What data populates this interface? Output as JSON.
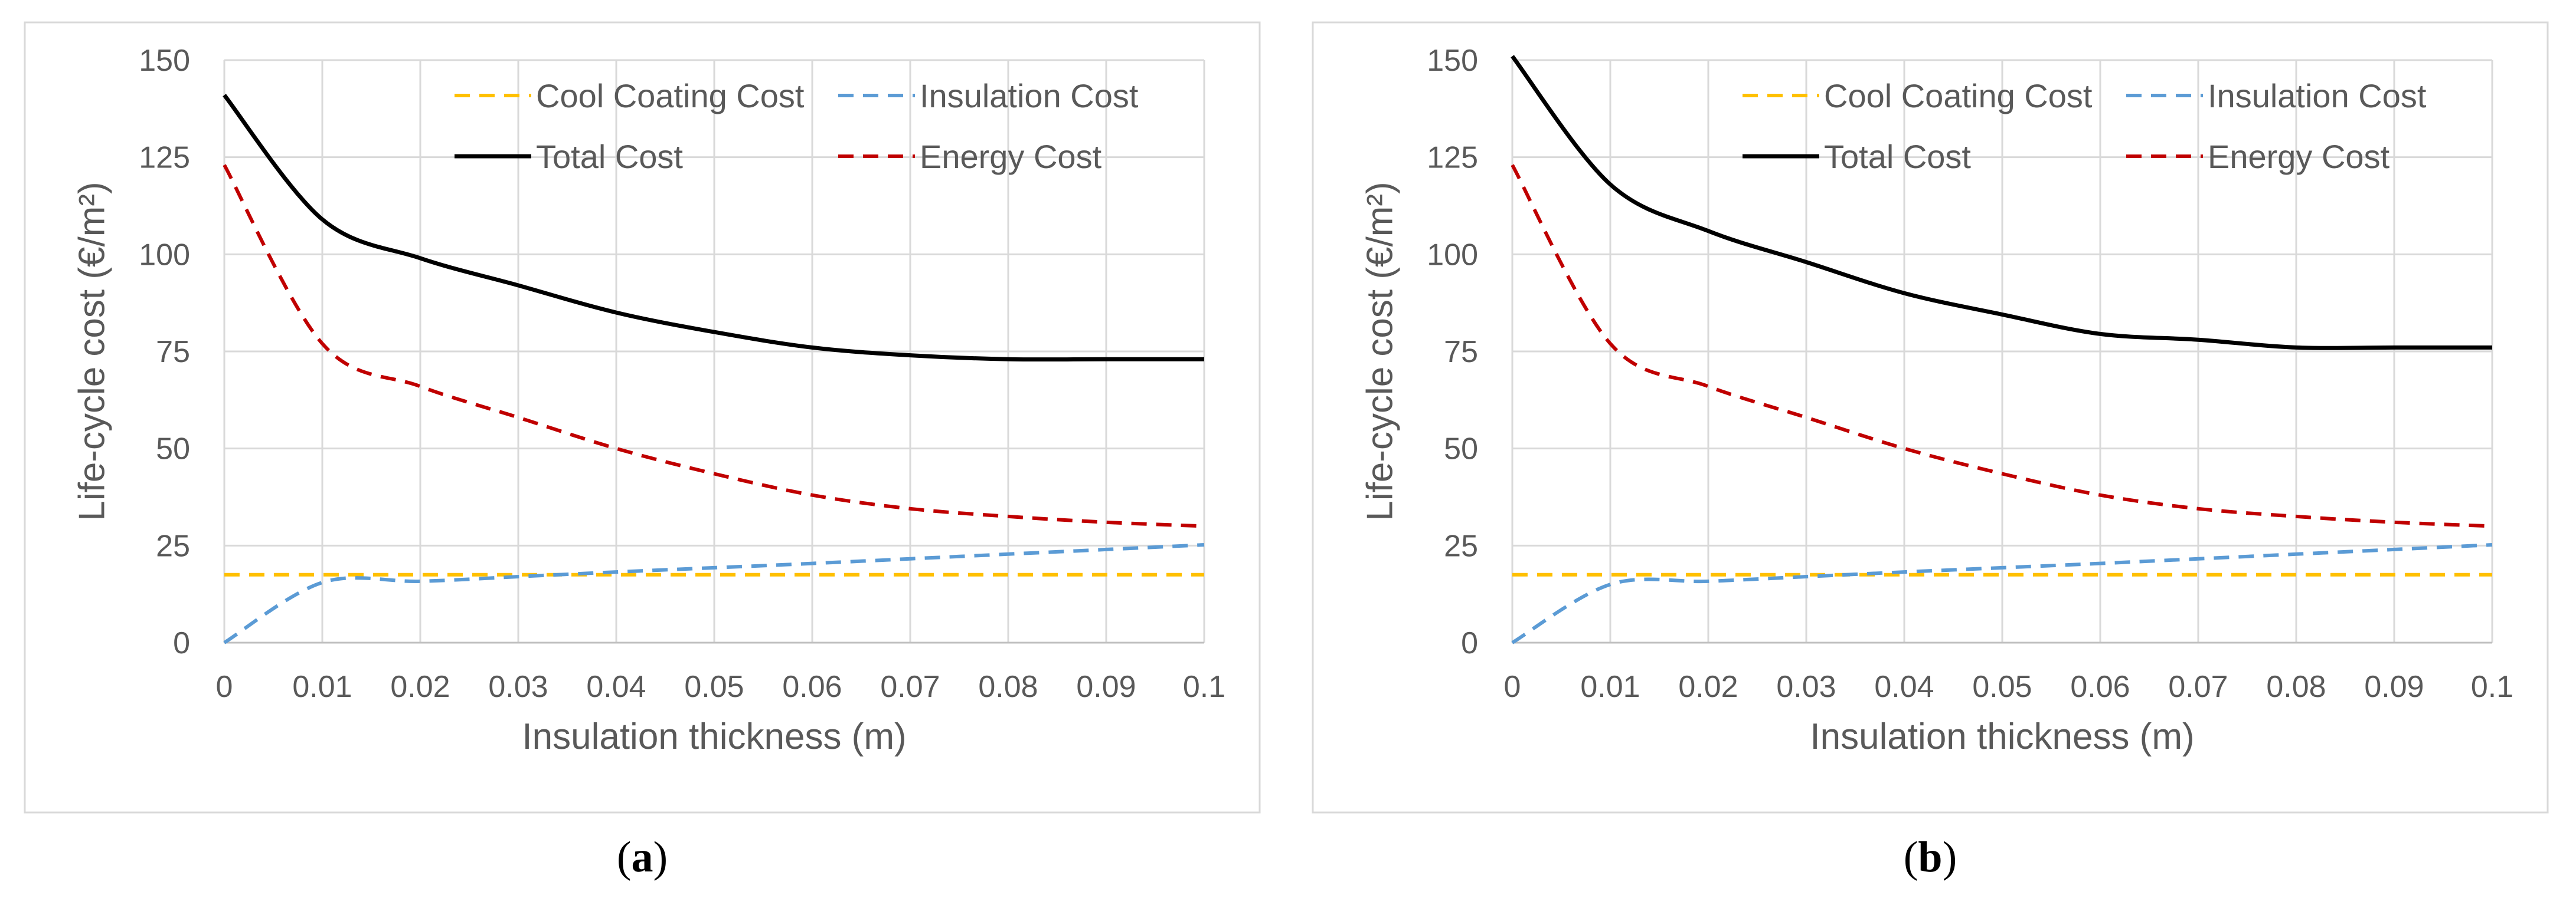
{
  "chart_data": [
    {
      "type": "line",
      "panel_label": "a",
      "title": "",
      "xlabel": "Insulation thickness (m)",
      "ylabel": "Life-cycle cost  (€/m²)",
      "xlim": [
        0,
        0.1
      ],
      "ylim": [
        0,
        150
      ],
      "x_ticks": [
        "0",
        "0.01",
        "0.02",
        "0.03",
        "0.04",
        "0.05",
        "0.06",
        "0.07",
        "0.08",
        "0.09",
        "0.1"
      ],
      "y_ticks": [
        "0",
        "25",
        "50",
        "75",
        "100",
        "125",
        "150"
      ],
      "x": [
        0,
        0.01,
        0.02,
        0.03,
        0.04,
        0.05,
        0.06,
        0.07,
        0.08,
        0.09,
        0.1
      ],
      "grid": true,
      "legend_position": "top-right",
      "series": [
        {
          "name": "Cool Coating Cost",
          "style": "dashed",
          "color": "#FFC000",
          "values": [
            17.5,
            17.5,
            17.5,
            17.5,
            17.5,
            17.5,
            17.5,
            17.5,
            17.5,
            17.5,
            17.5
          ]
        },
        {
          "name": "Insulation Cost",
          "style": "dashed",
          "color": "#5B9BD5",
          "values": [
            0,
            15.5,
            15.8,
            17,
            18.2,
            19.3,
            20.4,
            21.6,
            22.8,
            24,
            25.2
          ]
        },
        {
          "name": "Total Cost",
          "style": "solid",
          "color": "#000000",
          "values": [
            141,
            109,
            99,
            92,
            85,
            80,
            76,
            74,
            73,
            73,
            73
          ]
        },
        {
          "name": "Energy Cost",
          "style": "dashed",
          "color": "#C00000",
          "values": [
            123,
            77,
            66,
            58,
            50,
            43.5,
            38,
            34.5,
            32.5,
            31,
            30
          ]
        }
      ]
    },
    {
      "type": "line",
      "panel_label": "b",
      "title": "",
      "xlabel": "Insulation thickness (m)",
      "ylabel": "Life-cycle cost  (€/m²)",
      "xlim": [
        0,
        0.1
      ],
      "ylim": [
        0,
        150
      ],
      "x_ticks": [
        "0",
        "0.01",
        "0.02",
        "0.03",
        "0.04",
        "0.05",
        "0.06",
        "0.07",
        "0.08",
        "0.09",
        "0.1"
      ],
      "y_ticks": [
        "0",
        "25",
        "50",
        "75",
        "100",
        "125",
        "150"
      ],
      "x": [
        0,
        0.01,
        0.02,
        0.03,
        0.04,
        0.05,
        0.06,
        0.07,
        0.08,
        0.09,
        0.1
      ],
      "grid": true,
      "legend_position": "top-right",
      "series": [
        {
          "name": "Cool Coating Cost",
          "style": "dashed",
          "color": "#FFC000",
          "values": [
            17.5,
            17.5,
            17.5,
            17.5,
            17.5,
            17.5,
            17.5,
            17.5,
            17.5,
            17.5,
            17.5
          ]
        },
        {
          "name": "Insulation Cost",
          "style": "dashed",
          "color": "#5B9BD5",
          "values": [
            0,
            15,
            15.8,
            17,
            18.2,
            19.3,
            20.4,
            21.6,
            22.8,
            24,
            25.2
          ]
        },
        {
          "name": "Total Cost",
          "style": "solid",
          "color": "#000000",
          "values": [
            151,
            118,
            106,
            98,
            90,
            84.5,
            79.5,
            78,
            76,
            76,
            76
          ]
        },
        {
          "name": "Energy Cost",
          "style": "dashed",
          "color": "#C00000",
          "values": [
            123,
            77,
            66,
            58,
            50,
            43.5,
            38,
            34.5,
            32.5,
            31,
            30
          ]
        }
      ]
    }
  ]
}
